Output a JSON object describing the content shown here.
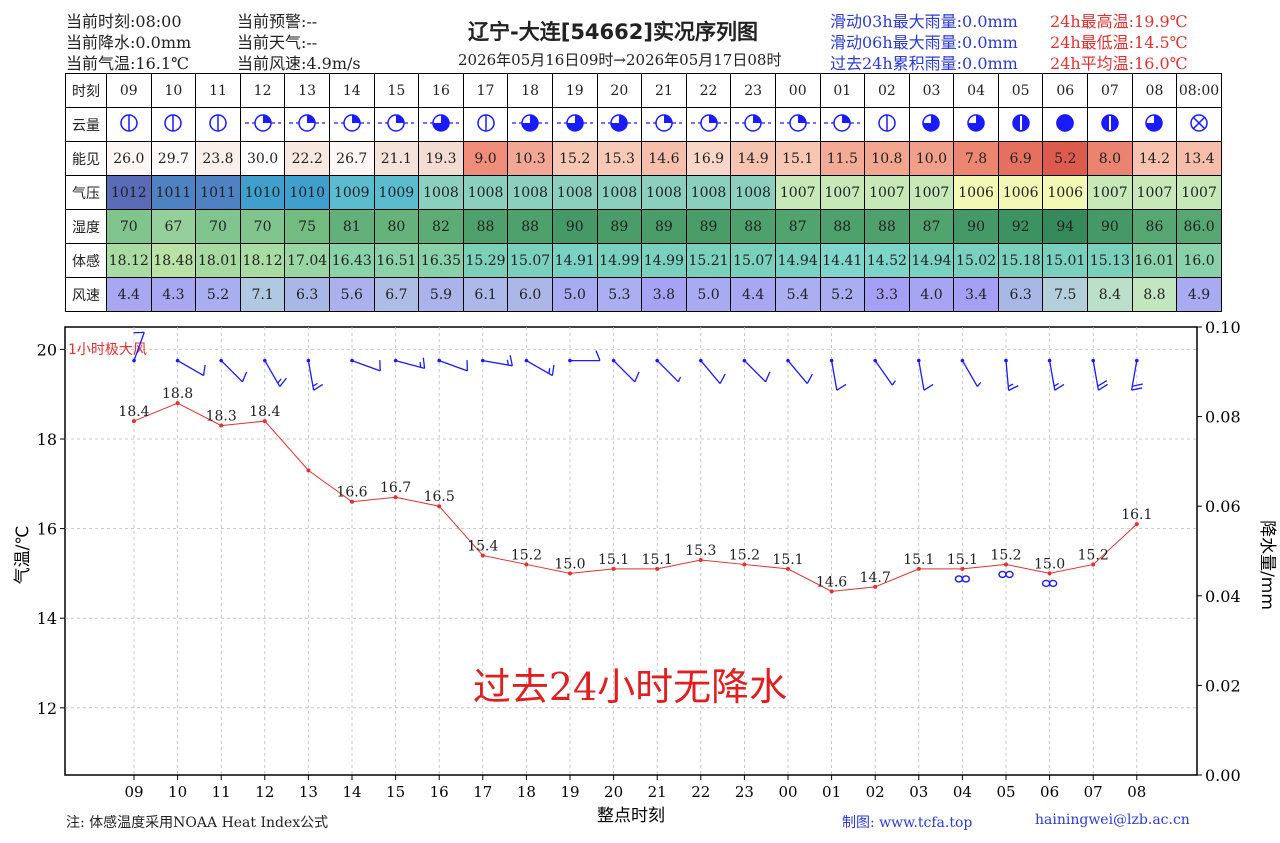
{
  "header": {
    "left_col1": [
      "当前时刻:08:00",
      "当前降水:0.0mm",
      "当前气温:16.1℃"
    ],
    "left_col2": [
      "当前预警:--",
      "当前天气:--",
      "当前风速:4.9m/s"
    ],
    "title": "辽宁-大连[54662]实况序列图",
    "subtitle": "2026年05月16日09时→2026年05月17日08时",
    "rain_stats": [
      "滑动03h最大雨量:0.0mm",
      "滑动06h最大雨量:0.0mm",
      "过去24h累积雨量:0.0mm"
    ],
    "temp_stats": [
      "24h最高温:19.9℃",
      "24h最低温:14.5℃",
      "24h平均温:16.0℃"
    ]
  },
  "table": {
    "row_labels": [
      "时刻",
      "云量",
      "能见",
      "气压",
      "湿度",
      "体感",
      "风速"
    ],
    "hours": [
      "09",
      "10",
      "11",
      "12",
      "13",
      "14",
      "15",
      "16",
      "17",
      "18",
      "19",
      "20",
      "21",
      "22",
      "23",
      "00",
      "01",
      "02",
      "03",
      "04",
      "05",
      "06",
      "07",
      "08",
      "08:00"
    ],
    "cloud": [
      1,
      1,
      1,
      3,
      4,
      4,
      4,
      5,
      1,
      5,
      5,
      5,
      4,
      4,
      4,
      4,
      4,
      1,
      6,
      6,
      7,
      8,
      7,
      6,
      "x"
    ],
    "visibility": [
      "26.0",
      "29.7",
      "23.8",
      "30.0",
      "22.2",
      "26.7",
      "21.1",
      "19.3",
      "9.0",
      "10.3",
      "15.2",
      "15.3",
      "14.6",
      "16.9",
      "14.9",
      "15.1",
      "11.5",
      "10.8",
      "10.0",
      "7.8",
      "6.9",
      "5.2",
      "8.0",
      "14.2",
      "13.4"
    ],
    "visibility_colors": [
      "#fcf7f4",
      "#fdfbf9",
      "#faefea",
      "#fefefe",
      "#f7e8e0",
      "#fcf7f4",
      "#f5e3da",
      "#f3ddd2",
      "#ef8d7a",
      "#f1a793",
      "#f7c7b4",
      "#f7c9b6",
      "#f5bfac",
      "#f9d7c8",
      "#f6c4b1",
      "#f7c7b4",
      "#f3aa96",
      "#f2a690",
      "#f19f8a",
      "#ec8671",
      "#e5705f",
      "#dd5b4c",
      "#ea8370",
      "#f8c2ae",
      "#f6beaa"
    ],
    "pressure": [
      "1012",
      "1011",
      "1011",
      "1010",
      "1010",
      "1009",
      "1009",
      "1008",
      "1008",
      "1008",
      "1008",
      "1008",
      "1008",
      "1008",
      "1008",
      "1007",
      "1007",
      "1007",
      "1007",
      "1006",
      "1006",
      "1006",
      "1007",
      "1007",
      "1007"
    ],
    "pressure_colors": [
      "#5a6cb8",
      "#4f82c2",
      "#4f82c2",
      "#3fa0cd",
      "#3fa0cd",
      "#5bbcd0",
      "#5bbcd0",
      "#8bcfbf",
      "#8bcfbf",
      "#8bcfbf",
      "#8bcfbf",
      "#8bcfbf",
      "#8bcfbf",
      "#8bcfbf",
      "#8bcfbf",
      "#c7e9b8",
      "#c7e9b8",
      "#c7e9b8",
      "#c7e9b8",
      "#f2f9b4",
      "#f2f9b4",
      "#f2f9b4",
      "#c7e9b8",
      "#c7e9b8",
      "#c7e9b8"
    ],
    "humidity": [
      "70",
      "67",
      "70",
      "70",
      "75",
      "81",
      "80",
      "82",
      "88",
      "88",
      "90",
      "89",
      "89",
      "89",
      "88",
      "87",
      "88",
      "88",
      "87",
      "90",
      "92",
      "94",
      "90",
      "86",
      "86.0"
    ],
    "humidity_colors": [
      "#80c58e",
      "#94cf9c",
      "#80c58e",
      "#80c58e",
      "#72bc82",
      "#63b07a",
      "#66b27b",
      "#5dac76",
      "#4ea16c",
      "#4ea16c",
      "#459966",
      "#4a9d69",
      "#4a9d69",
      "#4a9d69",
      "#4ea16c",
      "#52a46f",
      "#4ea16c",
      "#4ea16c",
      "#52a46f",
      "#459966",
      "#3c9260",
      "#348a5a",
      "#459966",
      "#56a772",
      "#56a772"
    ],
    "apparent": [
      "18.12",
      "18.48",
      "18.01",
      "18.12",
      "17.04",
      "16.43",
      "16.51",
      "16.35",
      "15.29",
      "15.07",
      "14.91",
      "14.99",
      "14.99",
      "15.21",
      "15.07",
      "14.94",
      "14.41",
      "14.52",
      "14.94",
      "15.02",
      "15.18",
      "15.01",
      "15.13",
      "16.01",
      "16.0"
    ],
    "apparent_colors": [
      "#a9dca2",
      "#b8e2a6",
      "#a6daa1",
      "#a9dca2",
      "#98d6a4",
      "#8ad2a8",
      "#8bd2a8",
      "#88d1a9",
      "#7cd0b8",
      "#7ad0bd",
      "#79d1c4",
      "#7ad0bf",
      "#7ad0bf",
      "#7bd0bb",
      "#7ad0bd",
      "#79d1c2",
      "#7fd6cd",
      "#7dd4c9",
      "#79d1c2",
      "#7ad0bf",
      "#7bd0bb",
      "#7ad0bf",
      "#7bd0bb",
      "#88d1a9",
      "#88d1a9"
    ],
    "wind": [
      "4.4",
      "4.3",
      "5.2",
      "7.1",
      "6.3",
      "5.6",
      "6.7",
      "5.9",
      "6.1",
      "6.0",
      "5.0",
      "5.3",
      "3.8",
      "5.0",
      "4.4",
      "5.4",
      "5.2",
      "3.3",
      "4.0",
      "3.4",
      "6.3",
      "7.5",
      "8.4",
      "8.8",
      "4.9"
    ],
    "wind_colors": [
      "#a7a7f2",
      "#a7a7f2",
      "#a9aef0",
      "#b1c9e0",
      "#a9b7e6",
      "#aab1ed",
      "#aebde5",
      "#abb4ea",
      "#acb8e8",
      "#acb7e8",
      "#a8abf1",
      "#a9aff0",
      "#a6a2f4",
      "#a8abf1",
      "#a7a7f2",
      "#a9aff0",
      "#a9aef0",
      "#a59ff5",
      "#a6a4f3",
      "#a5a0f4",
      "#a9b7e6",
      "#b3cfdc",
      "#bcdfc9",
      "#c2e6bf",
      "#a8abf1"
    ]
  },
  "chart_data": {
    "type": "line",
    "x": [
      "09",
      "10",
      "11",
      "12",
      "13",
      "14",
      "15",
      "16",
      "17",
      "18",
      "19",
      "20",
      "21",
      "22",
      "23",
      "00",
      "01",
      "02",
      "03",
      "04",
      "05",
      "06",
      "07",
      "08"
    ],
    "series": [
      {
        "values": [
          18.4,
          18.8,
          18.3,
          18.4,
          17.3,
          16.6,
          16.7,
          16.5,
          15.4,
          15.2,
          15.0,
          15.1,
          15.1,
          15.3,
          15.2,
          15.1,
          14.6,
          14.7,
          15.1,
          15.1,
          15.2,
          15.0,
          15.2,
          16.1
        ],
        "labels": [
          "18.4",
          "18.8",
          "18.3",
          "18.4",
          "",
          "16.6",
          "16.7",
          "16.5",
          "15.4",
          "15.2",
          "15.0",
          "15.1",
          "15.1",
          "15.3",
          "15.2",
          "15.1",
          "14.6",
          "14.7",
          "15.1",
          "15.1",
          "15.2",
          "15.0",
          "15.2",
          "16.1"
        ],
        "color": "#e53030"
      }
    ],
    "ylabel": "气温/℃",
    "y2label": "降水量/mm",
    "xlabel": "整点时刻",
    "ylim": [
      10.5,
      20.5
    ],
    "yticks": [
      12,
      14,
      16,
      18,
      20
    ],
    "y2lim": [
      0.0,
      0.1
    ],
    "y2ticks": [
      "0.00",
      "0.02",
      "0.04",
      "0.06",
      "0.08",
      "0.10"
    ],
    "grid": true,
    "wind_barb_label": "1小时极大风",
    "wind_dirs_deg": [
      200,
      300,
      315,
      330,
      350,
      290,
      285,
      290,
      280,
      300,
      270,
      315,
      315,
      320,
      315,
      320,
      350,
      325,
      350,
      330,
      355,
      350,
      350,
      10
    ],
    "wind_speeds": [
      4.4,
      4.3,
      5.2,
      7.1,
      6.3,
      5.6,
      6.7,
      5.9,
      6.1,
      6.0,
      5.0,
      5.3,
      3.8,
      5.0,
      4.4,
      5.4,
      5.2,
      3.3,
      4.0,
      3.4,
      6.3,
      7.5,
      8.4,
      8.8
    ],
    "haze_symbol_hours": [
      "04",
      "05",
      "06"
    ],
    "annotation": "过去24小时无降水",
    "annotation_color": "#e02020"
  },
  "footer": {
    "note": "注: 体感温度采用NOAA Heat Index公式",
    "credit": "制图: www.tcfa.top",
    "email": "hainingwei@lzb.ac.cn"
  }
}
